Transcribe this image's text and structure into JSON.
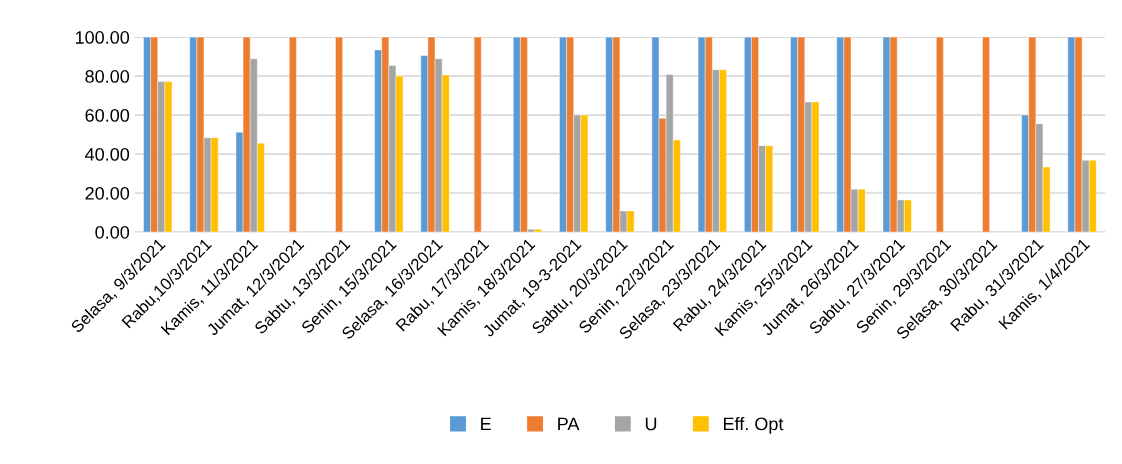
{
  "chart_data": {
    "type": "bar",
    "categories": [
      "Selasa, 9/3/2021",
      "Rabu,10/3/2021",
      "Kamis, 11/3/2021",
      "Jumat, 12/3/2021",
      "Sabtu, 13/3/2021",
      "Senin, 15/3/2021",
      "Selasa, 16/3/2021",
      "Rabu, 17/3/2021",
      "Kamis, 18/3/2021",
      "Jumat, 19-3-2021",
      "Sabtu, 20/3/2021",
      "Senin, 22/3/2021",
      "Selasa, 23/3/2021",
      "Rabu, 24/3/2021",
      "Kamis, 25/3/2021",
      "Jumat, 26/3/2021",
      "Sabtu, 27/3/2021",
      "Senin, 29/3/2021",
      "Selasa, 30/3/2021",
      "Rabu, 31/3/2021",
      "Kamis, 1/4/2021"
    ],
    "series": [
      {
        "name": "E",
        "color": "#5b9bd5",
        "values": [
          100,
          100,
          51.2,
          null,
          null,
          93.4,
          90.6,
          null,
          100,
          100,
          100,
          100,
          100,
          100,
          100,
          100,
          100,
          null,
          null,
          60,
          100
        ]
      },
      {
        "name": "PA",
        "color": "#ed7d31",
        "values": [
          100,
          100,
          100,
          100,
          100,
          100,
          100,
          100,
          100,
          100,
          100,
          58.4,
          100,
          100,
          100,
          100,
          100,
          100,
          100,
          100,
          100
        ]
      },
      {
        "name": "U",
        "color": "#a5a5a5",
        "values": [
          77.2,
          48.4,
          88.9,
          null,
          null,
          85.4,
          88.9,
          null,
          1.4,
          60,
          10.8,
          80.8,
          83.3,
          44.3,
          66.7,
          22,
          16.4,
          null,
          null,
          55.6,
          36.8
        ]
      },
      {
        "name": "Eff. Opt",
        "color": "#ffc000",
        "values": [
          77.2,
          48.4,
          45.6,
          null,
          null,
          80,
          80.5,
          null,
          1.4,
          60,
          10.8,
          47.2,
          83.3,
          44.3,
          66.7,
          22,
          16.4,
          null,
          null,
          33.3,
          36.8
        ]
      }
    ],
    "ylim": [
      0,
      100
    ],
    "yticks": [
      {
        "value": 0,
        "label": "0.00"
      },
      {
        "value": 20,
        "label": "20.00"
      },
      {
        "value": 40,
        "label": "40.00"
      },
      {
        "value": 60,
        "label": "60.00"
      },
      {
        "value": 80,
        "label": "80.00"
      },
      {
        "value": 100,
        "label": "100.00"
      }
    ],
    "grid": "y",
    "legend": "bottom"
  }
}
